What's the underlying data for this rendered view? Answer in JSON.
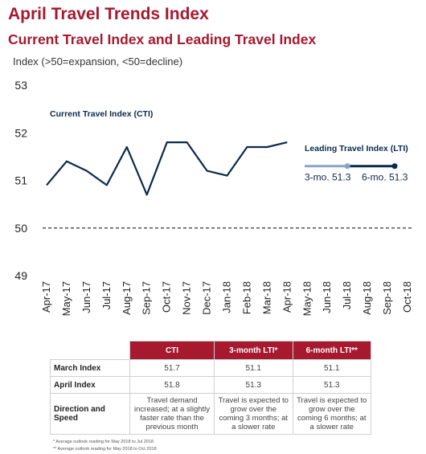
{
  "header": {
    "title": "April Travel Trends Index",
    "subtitle": "Current Travel Index and Leading Travel Index",
    "y_axis_label": "Index (>50=expansion, <50=decline)"
  },
  "chart_data": {
    "type": "line",
    "categories": [
      "Apr-17",
      "May-17",
      "Jun-17",
      "Jul-17",
      "Aug-17",
      "Sep-17",
      "Oct-17",
      "Nov-17",
      "Dec-17",
      "Jan-18",
      "Feb-18",
      "Mar-18",
      "Apr-18",
      "May-18",
      "Jun-18",
      "Jul-18",
      "Aug-18",
      "Sep-18",
      "Oct-18"
    ],
    "ylim": [
      49,
      53
    ],
    "yticks": [
      49,
      50,
      51,
      52,
      53
    ],
    "reference_line": {
      "value": 50,
      "style": "dashed"
    },
    "series": [
      {
        "name": "Current Travel Index (CTI)",
        "color": "#0b2a4a",
        "values": [
          50.9,
          51.4,
          51.2,
          50.9,
          51.7,
          50.7,
          51.8,
          51.8,
          51.2,
          51.1,
          51.7,
          51.7,
          51.8,
          null,
          null,
          null,
          null,
          null,
          null
        ]
      }
    ],
    "lti": {
      "title": "Leading Travel Index (LTI)",
      "points": [
        {
          "label": "3-mo. 51.3",
          "category": "Jul-18",
          "value": 51.3,
          "color": "#8aa3c8"
        },
        {
          "label": "6-mo. 51.3",
          "category": "Oct-18",
          "value": 51.3,
          "color": "#0b2a4a"
        }
      ]
    }
  },
  "table": {
    "headers": [
      "CTI",
      "3-month LTI*",
      "6-month LTI**"
    ],
    "rows": [
      {
        "label": "March Index",
        "cells": [
          "51.7",
          "51.1",
          "51.1"
        ]
      },
      {
        "label": "April Index",
        "cells": [
          "51.8",
          "51.3",
          "51.3"
        ]
      },
      {
        "label": "Direction and Speed",
        "cells": [
          "Travel demand increased; at a slightly faster rate than the previous month",
          "Travel is expected to grow over the coming 3 months; at a slower rate",
          "Travel is expected to grow over the coming 6 months; at a slower rate"
        ]
      }
    ]
  },
  "footnotes": [
    "* Average outlook reading for May 2018 to Jul 2018",
    "** Average outlook reading for May 2018 to Oct 2018"
  ]
}
